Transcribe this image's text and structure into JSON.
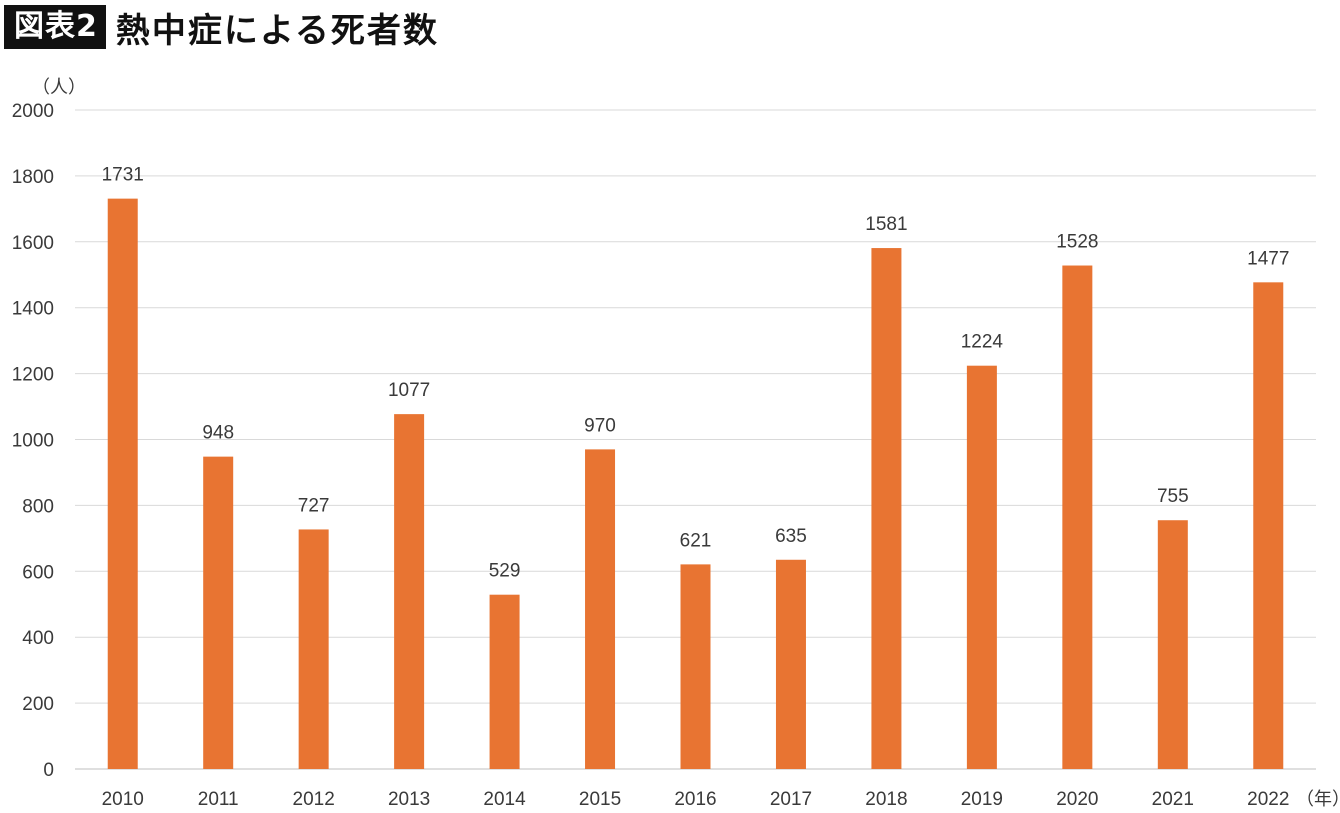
{
  "header": {
    "badge": "図表2",
    "title": "熱中症による死者数"
  },
  "chart_data": {
    "type": "bar",
    "title": "熱中症による死者数",
    "categories": [
      "2010",
      "2011",
      "2012",
      "2013",
      "2014",
      "2015",
      "2016",
      "2017",
      "2018",
      "2019",
      "2020",
      "2021",
      "2022"
    ],
    "values": [
      1731,
      948,
      727,
      1077,
      529,
      970,
      621,
      635,
      1581,
      1224,
      1528,
      755,
      1477
    ],
    "ylabel": "（人）",
    "xlabel": "（年）",
    "ylim": [
      0,
      2000
    ],
    "yticks": [
      0,
      200,
      400,
      600,
      800,
      1000,
      1200,
      1400,
      1600,
      1800,
      2000
    ],
    "grid": true,
    "data_labels": true,
    "colors": {
      "bar": "#E87432",
      "grid": "#d9d9d9",
      "axis": "#bfbfbf"
    }
  }
}
